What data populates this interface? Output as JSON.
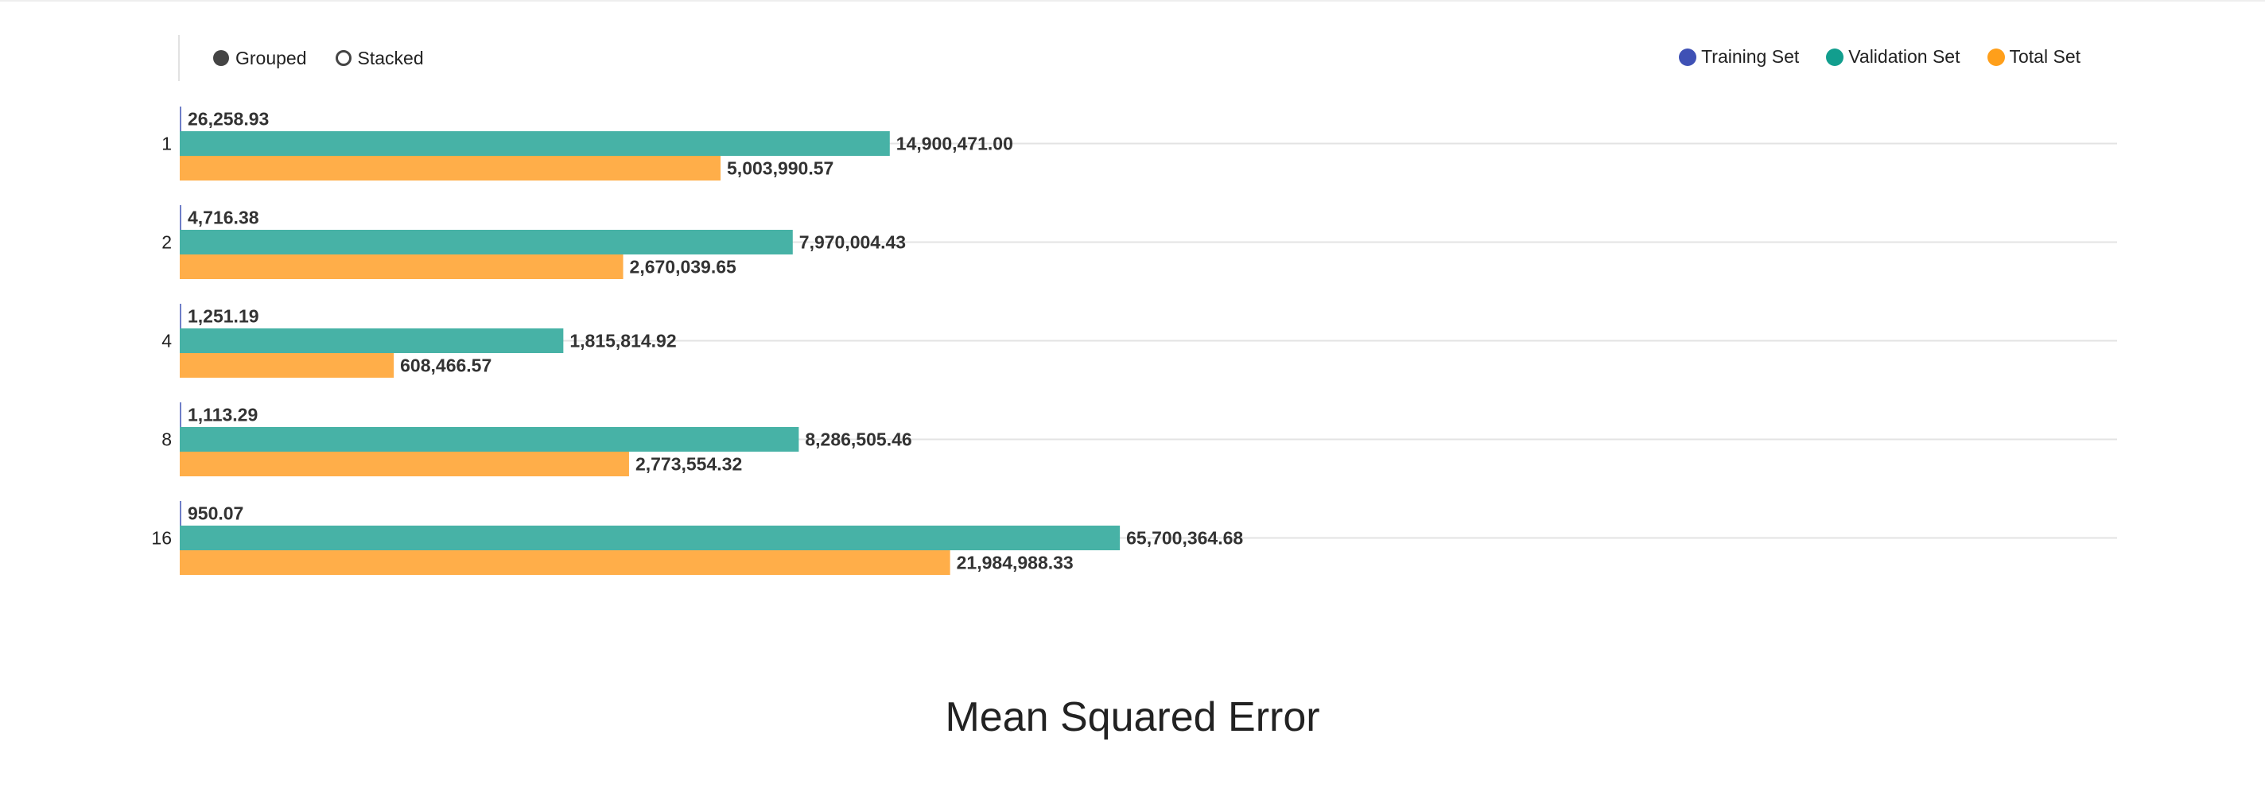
{
  "controls": {
    "grouped_label": "Grouped",
    "stacked_label": "Stacked",
    "selected": "grouped"
  },
  "legend": [
    {
      "name": "Training Set",
      "color": "#3f51b5"
    },
    {
      "name": "Validation Set",
      "color": "#129e8e"
    },
    {
      "name": "Total Set",
      "color": "#ff9f1a"
    }
  ],
  "chart_data": {
    "type": "bar",
    "orientation": "horizontal",
    "mode": "grouped",
    "title": "Mean Squared Error",
    "categories": [
      "1",
      "2",
      "4",
      "8",
      "16"
    ],
    "series": [
      {
        "name": "Training Set",
        "color": "#6f7fc8",
        "values": [
          26258.93,
          4716.38,
          1251.19,
          1113.29,
          950.07
        ],
        "labels": [
          "26,258.93",
          "4,716.38",
          "1,251.19",
          "1,113.29",
          "950.07"
        ]
      },
      {
        "name": "Validation Set",
        "color": "#47b2a6",
        "values": [
          14900471.0,
          7970004.43,
          1815814.92,
          8286505.46,
          65700364.68
        ],
        "labels": [
          "14,900,471.00",
          "7,970,004.43",
          "1,815,814.92",
          "8,286,505.46",
          "65,700,364.68"
        ]
      },
      {
        "name": "Total Set",
        "color": "#ffae49",
        "values": [
          5003990.57,
          2670039.65,
          608466.57,
          2773554.32,
          21984988.33
        ],
        "labels": [
          "5,003,990.57",
          "2,670,039.65",
          "608,466.57",
          "2,773,554.32",
          "21,984,988.33"
        ]
      }
    ],
    "x_scale": "log",
    "grid": true,
    "legend_position": "top-right"
  }
}
